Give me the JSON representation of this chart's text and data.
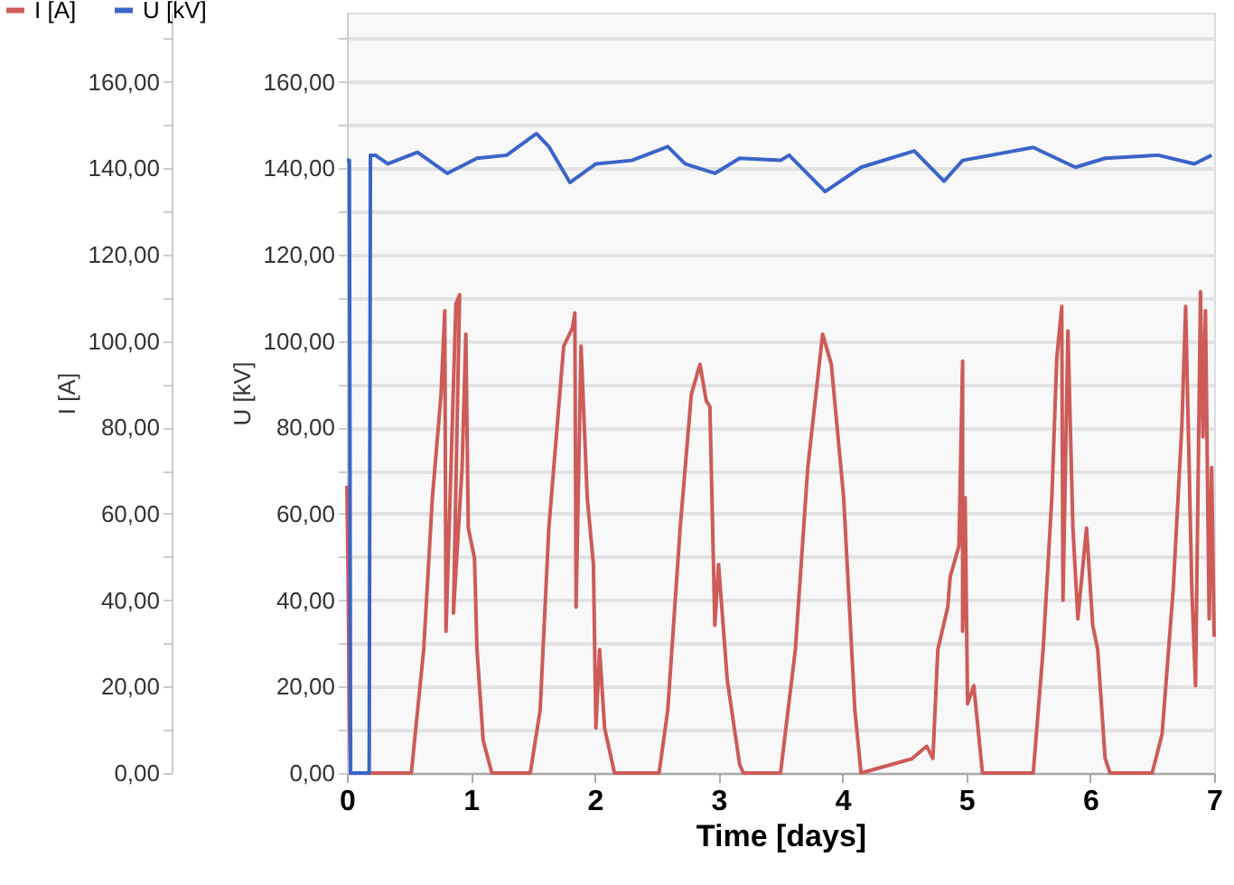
{
  "chart_data": {
    "type": "line",
    "xlabel": "Time [days]",
    "ylabel": "I [A]",
    "y2label": "U [kV]",
    "xlim": [
      0,
      7
    ],
    "xticks": [
      0,
      1,
      2,
      3,
      4,
      5,
      6,
      7
    ],
    "ylim": [
      0,
      176
    ],
    "yticks": [
      {
        "value": 0,
        "label": "0,00"
      },
      {
        "value": 10,
        "label": null
      },
      {
        "value": 20,
        "label": "20,00"
      },
      {
        "value": 30,
        "label": null
      },
      {
        "value": 40,
        "label": "40,00"
      },
      {
        "value": 50,
        "label": null
      },
      {
        "value": 60,
        "label": "60,00"
      },
      {
        "value": 70,
        "label": null
      },
      {
        "value": 80,
        "label": "80,00"
      },
      {
        "value": 90,
        "label": null
      },
      {
        "value": 100,
        "label": "100,00"
      },
      {
        "value": 110,
        "label": null
      },
      {
        "value": 120,
        "label": "120,00"
      },
      {
        "value": 130,
        "label": null
      },
      {
        "value": 140,
        "label": "140,00"
      },
      {
        "value": 150,
        "label": null
      },
      {
        "value": 160,
        "label": "160,00"
      },
      {
        "value": 170,
        "label": null
      }
    ],
    "y2lim": [
      0,
      176
    ],
    "y2ticks": [
      {
        "value": 0,
        "label": "0,00"
      },
      {
        "value": 10,
        "label": null
      },
      {
        "value": 20,
        "label": "20,00"
      },
      {
        "value": 30,
        "label": null
      },
      {
        "value": 40,
        "label": "40,00"
      },
      {
        "value": 50,
        "label": null
      },
      {
        "value": 60,
        "label": "60,00"
      },
      {
        "value": 70,
        "label": null
      },
      {
        "value": 80,
        "label": "80,00"
      },
      {
        "value": 90,
        "label": null
      },
      {
        "value": 100,
        "label": "100,00"
      },
      {
        "value": 110,
        "label": null
      },
      {
        "value": 120,
        "label": "120,00"
      },
      {
        "value": 130,
        "label": null
      },
      {
        "value": 140,
        "label": "140,00"
      },
      {
        "value": 150,
        "label": null
      },
      {
        "value": 160,
        "label": "160,00"
      },
      {
        "value": 170,
        "label": null
      }
    ],
    "grid": "y",
    "legend": "top left",
    "line_style": "solid",
    "marker": "none",
    "series": [
      {
        "name": "I [A]",
        "color": "#cd5b58",
        "x": [
          0,
          0.01,
          0.02,
          0.03,
          0.52,
          0.62,
          0.69,
          0.76,
          0.79,
          0.8,
          0.88,
          0.91,
          0.86,
          0.93,
          0.96,
          0.98,
          1.03,
          1.05,
          1.1,
          1.17,
          1.48,
          1.56,
          1.63,
          1.75,
          1.82,
          1.84,
          1.85,
          1.89,
          1.94,
          1.99,
          2.01,
          2.04,
          2.08,
          2.16,
          2.52,
          2.59,
          2.69,
          2.78,
          2.85,
          2.9,
          2.93,
          2.97,
          3.0,
          3.07,
          3.17,
          3.2,
          3.5,
          3.62,
          3.72,
          3.84,
          3.91,
          4.01,
          4.1,
          4.15,
          4.56,
          4.68,
          4.73,
          4.77,
          4.85,
          4.87,
          4.94,
          4.97,
          4.97,
          4.99,
          5.01,
          5.06,
          5.13,
          5.54,
          5.62,
          5.69,
          5.73,
          5.77,
          5.78,
          5.82,
          5.86,
          5.9,
          5.97,
          6.02,
          6.06,
          6.12,
          6.16,
          6.5,
          6.58,
          6.67,
          6.74,
          6.77,
          6.82,
          6.85,
          6.89,
          6.91,
          6.93,
          6.96,
          6.98,
          7.0
        ],
        "values": [
          66.5,
          45,
          12.6,
          0,
          0,
          28.6,
          63.7,
          87.6,
          107,
          32.8,
          108.6,
          110.7,
          37,
          70.7,
          101.6,
          56.7,
          49.7,
          28.6,
          7.6,
          0,
          0,
          14.6,
          56.7,
          98.8,
          103,
          106.5,
          38.4,
          98.8,
          63.7,
          48.3,
          10.4,
          28.6,
          10.4,
          0,
          0,
          14.6,
          56.7,
          87.6,
          94.6,
          86.2,
          84.8,
          34.2,
          48.3,
          21.6,
          2,
          0,
          0,
          28.6,
          70.7,
          101.6,
          94.6,
          63.7,
          14.6,
          0,
          3.3,
          6.2,
          3.4,
          28.6,
          38.4,
          45.5,
          52.5,
          95.3,
          32.8,
          63.7,
          16,
          20.2,
          0,
          0,
          28.6,
          63.7,
          96,
          108,
          40,
          102.3,
          56.7,
          35.7,
          56.7,
          34.2,
          28.6,
          3.4,
          0,
          0,
          9,
          42.6,
          80.6,
          108,
          42.6,
          20.2,
          111.4,
          77.8,
          107,
          35.7,
          70.7,
          31.5
        ]
      },
      {
        "name": "U [kV]",
        "color": "#3a64c8",
        "axis": "y2",
        "x": [
          0,
          0.02,
          0.03,
          0.18,
          0.19,
          0.23,
          0.33,
          0.57,
          0.81,
          1.05,
          1.29,
          1.53,
          1.63,
          1.8,
          2.01,
          2.3,
          2.59,
          2.73,
          2.97,
          3.17,
          3.5,
          3.57,
          3.86,
          4.15,
          4.58,
          4.82,
          4.97,
          5.54,
          5.88,
          6.12,
          6.55,
          6.84,
          6.98
        ],
        "values": [
          141.8,
          141.8,
          0,
          0,
          143,
          143,
          141,
          143.7,
          138.8,
          142.3,
          143,
          148,
          145,
          136.7,
          141,
          141.8,
          145,
          141,
          138.8,
          142.3,
          141.8,
          143,
          134.6,
          140.2,
          144,
          137,
          141.8,
          144.8,
          140.2,
          142.3,
          143,
          141,
          143
        ]
      }
    ]
  }
}
